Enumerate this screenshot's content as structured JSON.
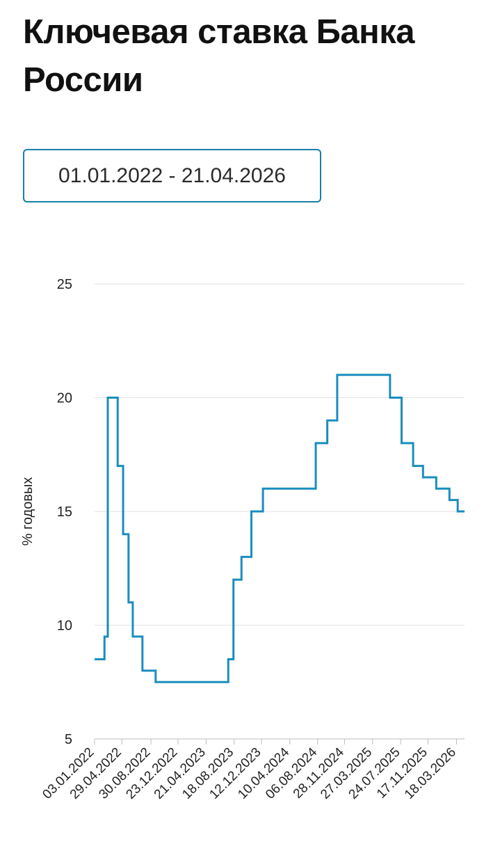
{
  "page": {
    "title": "Ключевая ставка Банка России",
    "date_range": "01.01.2022 - 21.04.2026"
  },
  "colors": {
    "line": "#1a8dbf",
    "grid": "#e2e2e2",
    "border": "#1a7ea8"
  },
  "chart_data": {
    "type": "line",
    "ylabel": "% годовых",
    "xlabel": "",
    "ylim": [
      5,
      25
    ],
    "yticks": [
      5,
      10,
      15,
      20,
      25
    ],
    "xlim": [
      "2022-01-03",
      "2026-04-21"
    ],
    "xticks": [
      "03.01.2022",
      "29.04.2022",
      "30.08.2022",
      "23.12.2022",
      "21.04.2023",
      "18.08.2023",
      "12.12.2023",
      "10.04.2024",
      "06.08.2024",
      "28.11.2024",
      "27.03.2025",
      "24.07.2025",
      "17.11.2025",
      "18.03.2026"
    ],
    "grid": true,
    "legend": "none",
    "step": true,
    "series": [
      {
        "points": [
          [
            "2022-01-03",
            8.5
          ],
          [
            "2022-02-14",
            9.5
          ],
          [
            "2022-02-28",
            20
          ],
          [
            "2022-04-11",
            17
          ],
          [
            "2022-05-04",
            14
          ],
          [
            "2022-05-27",
            11
          ],
          [
            "2022-06-14",
            9.5
          ],
          [
            "2022-07-25",
            8
          ],
          [
            "2022-09-19",
            7.5
          ],
          [
            "2023-07-24",
            8.5
          ],
          [
            "2023-08-15",
            12
          ],
          [
            "2023-09-18",
            13
          ],
          [
            "2023-10-30",
            15
          ],
          [
            "2023-12-18",
            16
          ],
          [
            "2024-07-29",
            18
          ],
          [
            "2024-09-16",
            19
          ],
          [
            "2024-10-28",
            21
          ],
          [
            "2025-06-09",
            20
          ],
          [
            "2025-07-28",
            18
          ],
          [
            "2025-09-15",
            17
          ],
          [
            "2025-10-27",
            16.5
          ],
          [
            "2025-12-22",
            16
          ],
          [
            "2026-02-16",
            15.5
          ],
          [
            "2026-03-23",
            15
          ],
          [
            "2026-04-21",
            15
          ]
        ]
      }
    ]
  }
}
